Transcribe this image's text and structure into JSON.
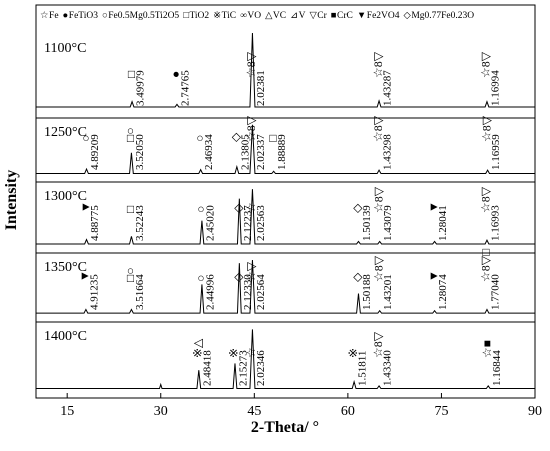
{
  "chart_data": {
    "type": "line",
    "x_label": "2-Theta/ °",
    "y_label": "Intensity",
    "xlim": [
      10,
      90
    ],
    "xticks": [
      15,
      30,
      45,
      60,
      75,
      90
    ],
    "ylim": [
      0,
      100
    ],
    "color": "#000000",
    "legend": [
      {
        "symbol": "☆",
        "text": "Fe"
      },
      {
        "symbol": "●",
        "text": "FeTiO3"
      },
      {
        "symbol": "○",
        "text": "Fe0.5Mg0.5Ti2O5"
      },
      {
        "symbol": "□",
        "text": "TiO2"
      },
      {
        "symbol": "※",
        "text": "TiC"
      },
      {
        "symbol": "∞",
        "text": "VO"
      },
      {
        "symbol": "△",
        "text": "VC"
      },
      {
        "symbol": "⊿",
        "text": "V"
      },
      {
        "symbol": "▽",
        "text": "Cr"
      },
      {
        "symbol": "■",
        "text": "CrC"
      },
      {
        "symbol": "▼",
        "text": "Fe2VO4"
      },
      {
        "symbol": "◇",
        "text": "Mg0.77Fe0.23O"
      }
    ],
    "series": [
      {
        "name": "1100°C",
        "x": [
          10,
          25.1,
          25.4,
          25.7,
          32.3,
          32.6,
          32.9,
          44.3,
          44.7,
          45.1,
          64.7,
          65.0,
          65.3,
          82.0,
          82.3,
          82.6,
          90
        ],
        "values": [
          8,
          8,
          14,
          8,
          8,
          11,
          8,
          8,
          92,
          8,
          8,
          15,
          8,
          8,
          14,
          8,
          8
        ],
        "annotations": [
          {
            "x": 25.4,
            "symbols": "□",
            "label": "3.49979"
          },
          {
            "x": 32.6,
            "symbols": "●",
            "label": "2.74765"
          },
          {
            "x": 44.7,
            "symbols": "☆8▽",
            "label": "2.02381"
          },
          {
            "x": 65.0,
            "symbols": "☆8▽",
            "label": "1.43287"
          },
          {
            "x": 82.3,
            "symbols": "☆8▽",
            "label": "1.16994"
          }
        ]
      },
      {
        "name": "1250°C",
        "x": [
          10,
          17.8,
          18.1,
          18.4,
          25.0,
          25.3,
          25.6,
          36.1,
          36.4,
          36.7,
          41.9,
          42.2,
          42.5,
          44.3,
          44.7,
          45.1,
          47.8,
          48.1,
          48.4,
          64.7,
          65.0,
          65.3,
          82.1,
          82.4,
          82.7,
          90
        ],
        "values": [
          8,
          8,
          16,
          8,
          8,
          45,
          8,
          8,
          15,
          8,
          8,
          20,
          8,
          8,
          95,
          8,
          8,
          12,
          8,
          8,
          14,
          8,
          8,
          14,
          8,
          8
        ],
        "annotations": [
          {
            "x": 18.1,
            "symbols": "○",
            "label": "4.89209"
          },
          {
            "x": 25.3,
            "symbols": "□○",
            "label": "3.52050"
          },
          {
            "x": 36.4,
            "symbols": "○",
            "label": "2.46934"
          },
          {
            "x": 42.2,
            "symbols": "◇",
            "label": "2.13805"
          },
          {
            "x": 44.7,
            "symbols": "☆8▽",
            "label": "2.02337"
          },
          {
            "x": 48.1,
            "symbols": "□",
            "label": "1.88889"
          },
          {
            "x": 65.0,
            "symbols": "☆8▽",
            "label": "1.43298"
          },
          {
            "x": 82.4,
            "symbols": "☆8▽",
            "label": "1.16959"
          }
        ]
      },
      {
        "name": "1300°C",
        "x": [
          10,
          17.8,
          18.1,
          18.4,
          25.0,
          25.3,
          25.6,
          36.3,
          36.6,
          36.9,
          42.3,
          42.6,
          42.9,
          44.3,
          44.7,
          45.1,
          61.4,
          61.7,
          62.0,
          64.8,
          65.1,
          65.4,
          73.6,
          73.9,
          74.2,
          82.0,
          82.3,
          82.6,
          90
        ],
        "values": [
          8,
          8,
          15,
          8,
          8,
          20,
          8,
          8,
          45,
          8,
          8,
          80,
          8,
          8,
          95,
          8,
          8,
          12,
          8,
          8,
          12,
          8,
          8,
          12,
          8,
          8,
          14,
          8,
          8
        ],
        "annotations": [
          {
            "x": 18.1,
            "symbols": "▼",
            "label": "4.88775"
          },
          {
            "x": 25.3,
            "symbols": "□",
            "label": "3.52243"
          },
          {
            "x": 36.6,
            "symbols": "○",
            "label": "2.45020"
          },
          {
            "x": 42.6,
            "symbols": "◇",
            "label": "2.12237"
          },
          {
            "x": 44.7,
            "symbols": "☆",
            "label": "2.02563"
          },
          {
            "x": 61.7,
            "symbols": "◇",
            "label": "1.50139"
          },
          {
            "x": 65.1,
            "symbols": "☆8▽",
            "label": "1.43079"
          },
          {
            "x": 73.9,
            "symbols": "▼",
            "label": "1.28041"
          },
          {
            "x": 82.3,
            "symbols": "☆8▽",
            "label": "1.16993"
          }
        ]
      },
      {
        "name": "1350°C",
        "x": [
          10,
          17.7,
          18.0,
          18.3,
          25.0,
          25.3,
          25.6,
          36.3,
          36.6,
          36.9,
          42.3,
          42.6,
          42.9,
          44.3,
          44.7,
          45.1,
          61.4,
          61.7,
          62.0,
          64.8,
          65.1,
          65.4,
          73.6,
          73.9,
          74.2,
          82.0,
          82.3,
          82.6,
          90
        ],
        "values": [
          8,
          8,
          14,
          8,
          8,
          14,
          8,
          8,
          55,
          8,
          8,
          90,
          8,
          8,
          95,
          8,
          8,
          40,
          8,
          8,
          12,
          8,
          8,
          12,
          8,
          8,
          14,
          8,
          8
        ],
        "annotations": [
          {
            "x": 18.0,
            "symbols": "▼",
            "label": "4.91235"
          },
          {
            "x": 25.3,
            "symbols": "□○",
            "label": "3.51664"
          },
          {
            "x": 36.6,
            "symbols": "○",
            "label": "2.44996"
          },
          {
            "x": 42.6,
            "symbols": "◇",
            "label": "2.12330"
          },
          {
            "x": 44.7,
            "symbols": "☆▽",
            "label": "2.02564"
          },
          {
            "x": 61.7,
            "symbols": "◇",
            "label": "1.50188"
          },
          {
            "x": 65.1,
            "symbols": "☆8▽",
            "label": "1.43201"
          },
          {
            "x": 73.9,
            "symbols": "▼",
            "label": "1.28074"
          },
          {
            "x": 82.3,
            "symbols": "☆8▽□",
            "label": "1.77040"
          }
        ]
      },
      {
        "name": "1400°C",
        "x": [
          10,
          29.8,
          30.0,
          30.2,
          35.8,
          36.1,
          36.4,
          41.6,
          41.9,
          42.2,
          44.3,
          44.7,
          45.1,
          60.7,
          61.0,
          61.3,
          64.7,
          65.0,
          65.3,
          82.2,
          82.5,
          82.8,
          90
        ],
        "values": [
          8,
          8,
          14,
          8,
          8,
          35,
          8,
          8,
          45,
          8,
          8,
          95,
          8,
          8,
          18,
          8,
          8,
          12,
          8,
          8,
          12,
          8,
          8
        ],
        "annotations": [
          {
            "x": 36.1,
            "symbols": "※△",
            "label": "2.48418"
          },
          {
            "x": 41.9,
            "symbols": "※",
            "label": "2.15273"
          },
          {
            "x": 44.7,
            "symbols": "☆",
            "label": "2.02346"
          },
          {
            "x": 61.0,
            "symbols": "※",
            "label": "1.51811"
          },
          {
            "x": 65.0,
            "symbols": "☆8▽",
            "label": "1.43340"
          },
          {
            "x": 82.5,
            "symbols": "☆■",
            "label": "1.16844"
          }
        ]
      }
    ]
  }
}
